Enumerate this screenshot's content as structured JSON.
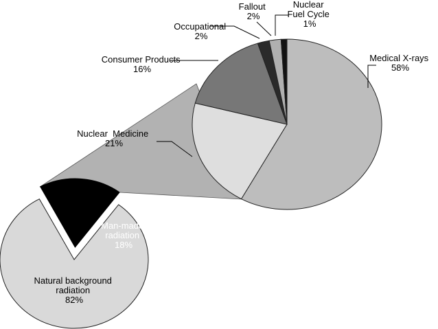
{
  "chart_data": [
    {
      "type": "pie",
      "title": "",
      "slices": [
        {
          "label": "Natural background radiation",
          "value": 82,
          "value_label": "82%",
          "color": "#d9d9d9"
        },
        {
          "label": "Man-made radiation",
          "value": 18,
          "value_label": "18%",
          "color": "#000000"
        }
      ]
    },
    {
      "type": "pie",
      "title": "",
      "slices": [
        {
          "label": "Medical X-rays",
          "value": 58,
          "value_label": "58%",
          "color": "#bdbdbd"
        },
        {
          "label": "Nuclear  Medicine",
          "value": 21,
          "value_label": "21%",
          "color": "#dedede"
        },
        {
          "label": "Consumer Products",
          "value": 16,
          "value_label": "16%",
          "color": "#777777"
        },
        {
          "label": "Occupational",
          "value": 2,
          "value_label": "2%",
          "color": "#2a2a2a"
        },
        {
          "label": "Fallout",
          "value": 2,
          "value_label": "2%",
          "color": "#b0b0b0"
        },
        {
          "label": "Nuclear Fuel Cycle",
          "value": 1,
          "value_label": "1%",
          "color": "#111111"
        }
      ]
    }
  ]
}
